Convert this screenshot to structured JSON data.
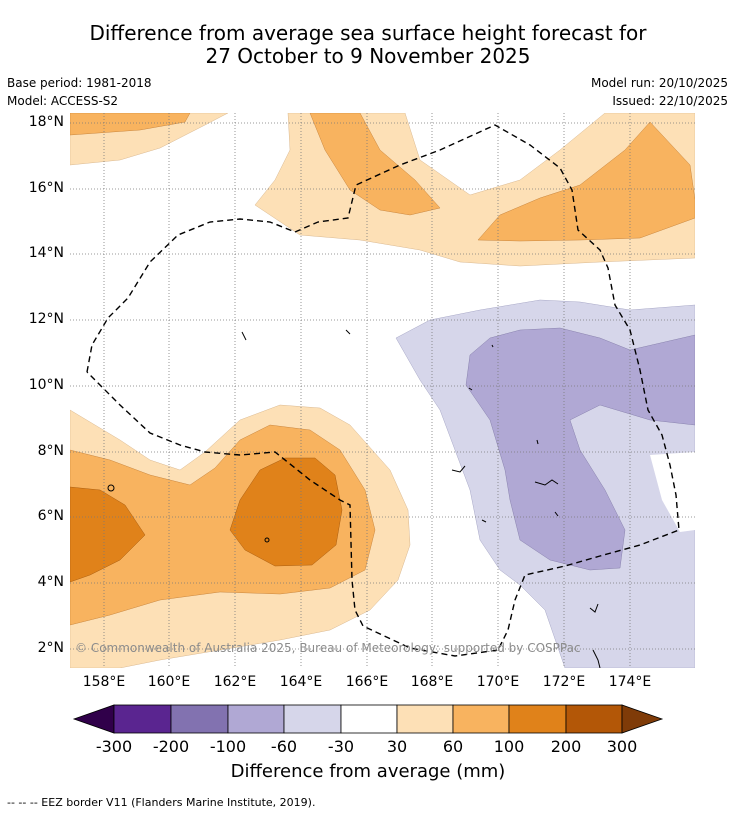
{
  "title": {
    "line1": "Difference from average sea surface height forecast for",
    "line2": "27 October to 9 November 2025"
  },
  "meta": {
    "base_period": "Base period: 1981-2018",
    "model": "Model: ACCESS-S2",
    "model_run": "Model run: 20/10/2025",
    "issued": "Issued: 22/10/2025"
  },
  "axes": {
    "lat_labels": [
      "18°N",
      "16°N",
      "14°N",
      "12°N",
      "10°N",
      "8°N",
      "6°N",
      "4°N",
      "2°N"
    ],
    "lon_labels": [
      "158°E",
      "160°E",
      "162°E",
      "164°E",
      "166°E",
      "168°E",
      "170°E",
      "172°E",
      "174°E"
    ]
  },
  "copyright": "© Commonwealth of Australia 2025, Bureau of Meteorology; supported by COSPPac",
  "colorbar": {
    "ticks": [
      "-300",
      "-200",
      "-100",
      "-60",
      "-30",
      "30",
      "60",
      "100",
      "200",
      "300"
    ],
    "colors": [
      "#30004a",
      "#5a2590",
      "#8272b0",
      "#b0a8d4",
      "#d6d6ea",
      "#ffffff",
      "#fde0b6",
      "#f8b35f",
      "#e0821a",
      "#b35707",
      "#7f3b08"
    ],
    "label": "Difference from average (mm)"
  },
  "footnote": "--  --  -- EEZ border V11 (Flanders Marine Institute, 2019).",
  "map_layers": {
    "positive_30_60": "#fde0b6",
    "positive_60_100": "#f8b35f",
    "positive_100_200": "#e0821a",
    "negative_30_60": "#d6d6ea",
    "negative_60_100": "#b0a8d4",
    "eez_border": "#000000"
  }
}
